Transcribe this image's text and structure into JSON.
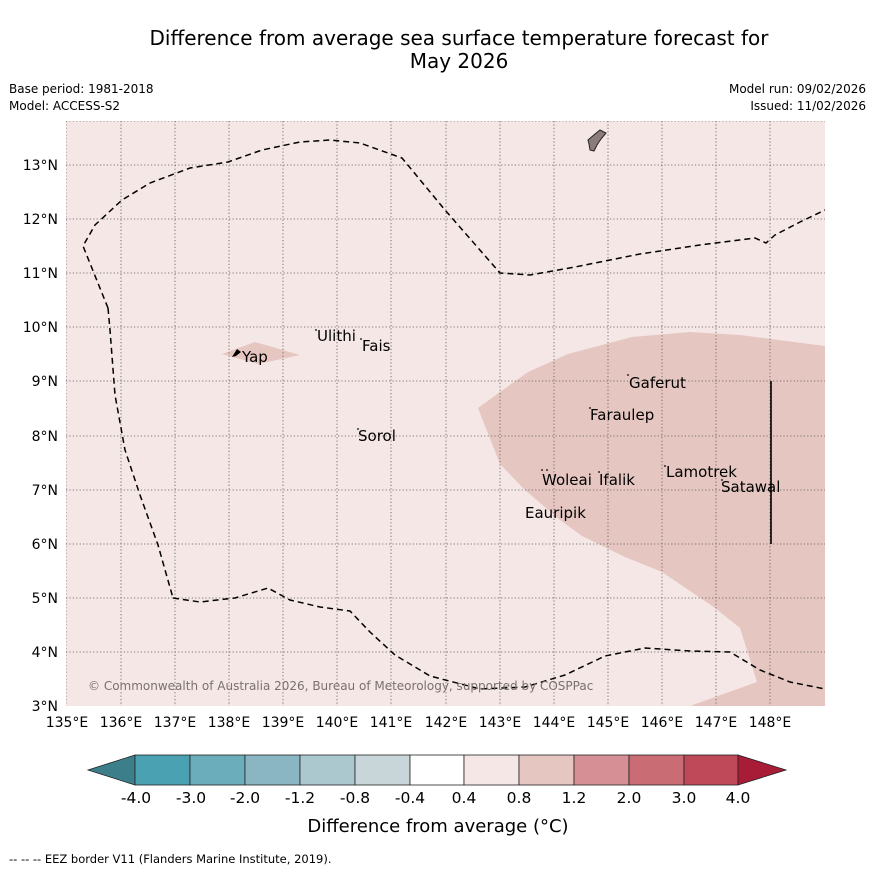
{
  "header": {
    "title_line1": "Difference from average sea surface temperature forecast for",
    "title_line2": "May 2026",
    "base_period": "Base period: 1981-2018",
    "model": "Model: ACCESS-S2",
    "model_run": "Model run: 09/02/2026",
    "issued": "Issued: 11/02/2026"
  },
  "map": {
    "lon_ticks": [
      "135°E",
      "136°E",
      "137°E",
      "138°E",
      "139°E",
      "140°E",
      "141°E",
      "142°E",
      "143°E",
      "144°E",
      "145°E",
      "146°E",
      "147°E",
      "148°E"
    ],
    "lat_ticks": [
      "13°N",
      "12°N",
      "11°N",
      "10°N",
      "9°N",
      "8°N",
      "7°N",
      "6°N",
      "5°N",
      "4°N",
      "3°N"
    ],
    "places": {
      "ulithi": "Ulithi",
      "fais": "Fais",
      "yap": "Yap",
      "gaferut": "Gaferut",
      "faraulep": "Faraulep",
      "sorol": "Sorol",
      "lamotrek": "Lamotrek",
      "woleai": "Woleai",
      "ifalik": "Ifalik",
      "satawal": "Satawal",
      "eauripik": "Eauripik"
    },
    "copyright": "© Commonwealth of Australia 2026, Bureau of Meteorology, supported by COSPPac",
    "colors": {
      "background_anomaly": "#f4e7e5",
      "warm_anomaly": "#e6c6c1",
      "eez_line": "#000000"
    }
  },
  "colorbar": {
    "labels": [
      "-4.0",
      "-3.0",
      "-2.0",
      "-1.2",
      "-0.8",
      "-0.4",
      "0.4",
      "0.8",
      "1.2",
      "2.0",
      "3.0",
      "4.0"
    ],
    "colors": [
      "#3c7f8b",
      "#4aa1b1",
      "#6cadbb",
      "#89b6c2",
      "#abc8ce",
      "#c8d6da",
      "#ffffff",
      "#f4e7e5",
      "#e6c6c1",
      "#d68f94",
      "#ca6c74",
      "#bf4958",
      "#a81c37"
    ],
    "label": "Difference from average (°C)"
  },
  "footer": {
    "legend": "-- -- -- EEZ border V11 (Flanders Marine Institute, 2019)."
  }
}
